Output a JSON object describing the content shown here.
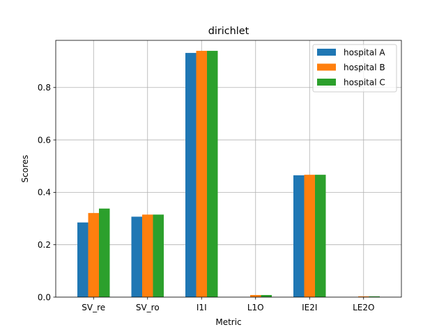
{
  "chart_data": {
    "type": "bar",
    "title": "dirichlet",
    "xlabel": "Metric",
    "ylabel": "Scores",
    "categories": [
      "SV_re",
      "SV_ro",
      "I1I",
      "L1O",
      "IE2I",
      "LE2O"
    ],
    "series": [
      {
        "name": "hospital A",
        "color": "#1f77b4",
        "values": [
          0.285,
          0.307,
          0.932,
          0.0,
          0.465,
          0.0
        ]
      },
      {
        "name": "hospital B",
        "color": "#ff7f0e",
        "values": [
          0.321,
          0.315,
          0.94,
          0.008,
          0.467,
          0.003
        ]
      },
      {
        "name": "hospital C",
        "color": "#2ca02c",
        "values": [
          0.338,
          0.315,
          0.94,
          0.008,
          0.467,
          0.003
        ]
      }
    ],
    "ylim": [
      0,
      0.98
    ],
    "yticks": [
      0.0,
      0.2,
      0.4,
      0.6,
      0.8
    ],
    "ytick_labels": [
      "0.0",
      "0.2",
      "0.4",
      "0.6",
      "0.8"
    ],
    "grid": true,
    "legend_position": "top-right"
  }
}
